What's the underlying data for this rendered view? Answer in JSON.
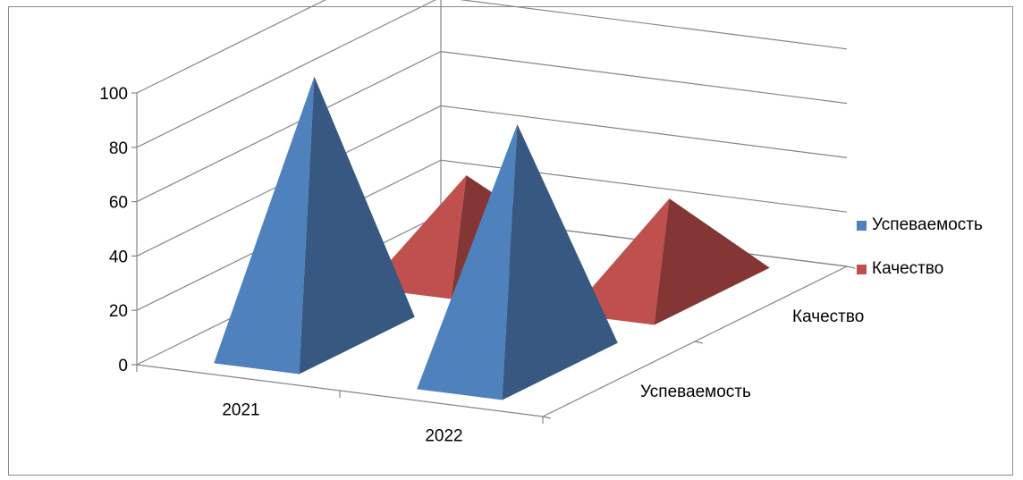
{
  "chart_data": {
    "type": "bar",
    "subtype": "3d-pyramid",
    "categories": [
      "2021",
      "2022"
    ],
    "series": [
      {
        "name": "Успеваемость",
        "values": [
          97,
          89
        ],
        "color": "#4F81BD"
      },
      {
        "name": "Качество",
        "values": [
          33,
          34
        ],
        "color": "#C0504D"
      }
    ],
    "ylim": [
      0,
      100
    ],
    "yticks": [
      "0",
      "20",
      "40",
      "60",
      "80",
      "100"
    ],
    "depth_labels": [
      "Успеваемость",
      "Качество"
    ],
    "grid": true,
    "legend": "right"
  }
}
